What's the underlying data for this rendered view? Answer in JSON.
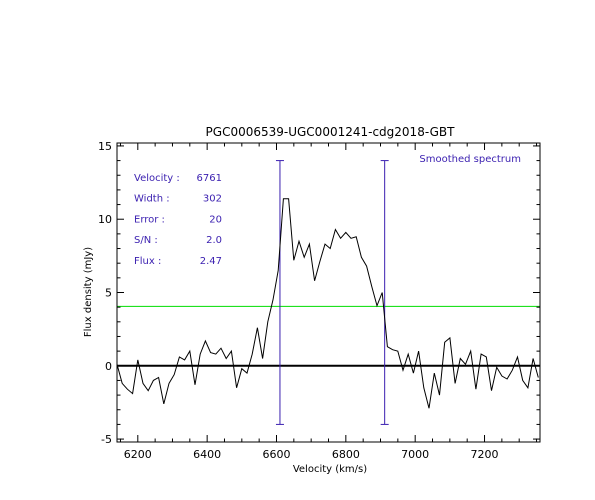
{
  "chart_data": {
    "type": "line",
    "title": "PGC0006539-UGC0001241-cdg2018-GBT",
    "xlabel": "Velocity (km/s)",
    "ylabel": "Flux density (mJy)",
    "xlim": [
      6140,
      7360
    ],
    "ylim": [
      -5.2,
      15.2
    ],
    "xticks": [
      6200,
      6400,
      6600,
      6800,
      7000,
      7200
    ],
    "yticks": [
      -5,
      0,
      5,
      10,
      15
    ],
    "grid": false,
    "annotation": "Smoothed spectrum",
    "info": [
      {
        "label": "Velocity :",
        "value": "6761"
      },
      {
        "label": "Width :",
        "value": "302"
      },
      {
        "label": "Error :",
        "value": "20"
      },
      {
        "label": "S/N :",
        "value": "2.0"
      },
      {
        "label": "Flux :",
        "value": "2.47"
      }
    ],
    "series": [
      {
        "color": "#000000",
        "x": [
          6140,
          6155,
          6170,
          6185,
          6200,
          6215,
          6230,
          6245,
          6260,
          6275,
          6290,
          6305,
          6320,
          6335,
          6350,
          6365,
          6380,
          6395,
          6410,
          6425,
          6440,
          6455,
          6470,
          6485,
          6500,
          6515,
          6530,
          6545,
          6560,
          6575,
          6590,
          6605,
          6620,
          6635,
          6650,
          6665,
          6680,
          6695,
          6710,
          6725,
          6740,
          6755,
          6770,
          6785,
          6800,
          6815,
          6830,
          6845,
          6860,
          6875,
          6890,
          6905,
          6920,
          6935,
          6950,
          6965,
          6980,
          6995,
          7010,
          7025,
          7040,
          7055,
          7070,
          7085,
          7100,
          7115,
          7130,
          7145,
          7160,
          7175,
          7190,
          7205,
          7220,
          7235,
          7250,
          7265,
          7280,
          7295,
          7310,
          7325,
          7340,
          7355
        ],
        "y": [
          0.1,
          -1.2,
          -1.6,
          -1.9,
          0.4,
          -1.2,
          -1.7,
          -1.0,
          -0.8,
          -2.6,
          -1.2,
          -0.6,
          0.6,
          0.4,
          1.0,
          -1.3,
          0.8,
          1.7,
          0.9,
          0.8,
          1.2,
          0.5,
          1.0,
          -1.5,
          -0.2,
          -0.5,
          0.8,
          2.6,
          0.5,
          3.0,
          4.5,
          6.5,
          11.4,
          11.4,
          7.2,
          8.5,
          7.4,
          8.3,
          5.8,
          7.1,
          8.3,
          8.0,
          9.3,
          8.7,
          9.1,
          8.7,
          8.8,
          7.4,
          6.8,
          5.4,
          4.1,
          5.0,
          1.3,
          1.1,
          1.0,
          -0.3,
          0.8,
          -0.5,
          1.0,
          -1.5,
          -2.9,
          -0.5,
          -2.0,
          1.6,
          1.9,
          -1.2,
          0.5,
          0.1,
          1.0,
          -1.6,
          0.8,
          0.6,
          -1.7,
          -0.1,
          -0.7,
          -0.9,
          -0.3,
          0.6,
          -1.0,
          -1.5,
          0.5,
          -0.8
        ]
      }
    ],
    "reference_lines": [
      {
        "type": "horizontal",
        "y": 0,
        "color": "#000000"
      },
      {
        "type": "horizontal",
        "y": 4.05,
        "color": "#00dd00"
      },
      {
        "type": "vertical",
        "x": 6610,
        "color": "#3a1fb0"
      },
      {
        "type": "vertical",
        "x": 6912,
        "color": "#3a1fb0"
      }
    ]
  }
}
